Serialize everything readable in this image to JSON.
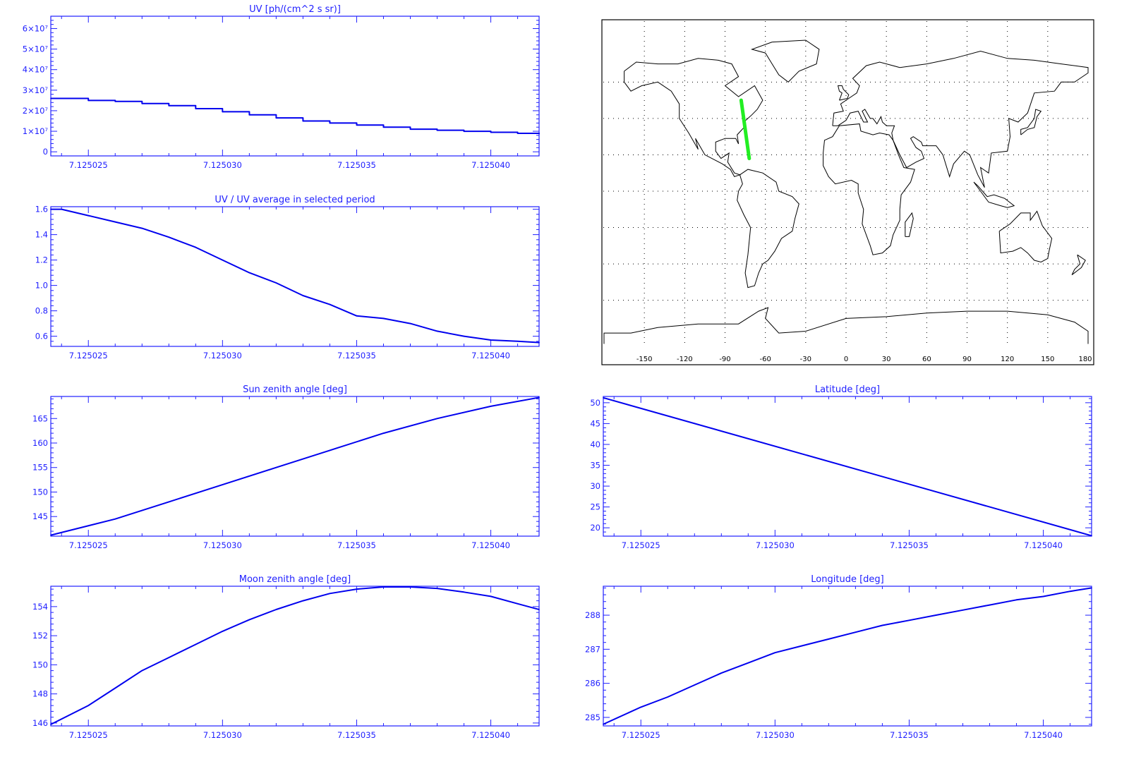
{
  "colors": {
    "axis": "#2020ff",
    "line": "#0000ee",
    "track": "#22ee22",
    "map": "#000000",
    "background": "#ffffff"
  },
  "map": {
    "x_ticks": [
      "-150",
      "-120",
      "-90",
      "-60",
      "-30",
      "0",
      "30",
      "60",
      "90",
      "120",
      "150",
      "180"
    ],
    "track": {
      "lon": [
        -72,
        -78
      ],
      "lat": [
        18,
        50
      ]
    }
  },
  "chart_data": [
    {
      "id": "uv",
      "type": "line",
      "title": "UV [ph/(cm^2 s sr)]",
      "xlim": [
        7.1250236,
        7.1250418
      ],
      "ylim": [
        -2000000,
        66000000
      ],
      "x_ticks": [
        "7.125025",
        "7.125030",
        "7.125035",
        "7.125040"
      ],
      "x_tick_values": [
        7.125025,
        7.12503,
        7.125035,
        7.12504
      ],
      "y_ticks": [
        "0",
        "1×10⁷",
        "2×10⁷",
        "3×10⁷",
        "4×10⁷",
        "5×10⁷",
        "6×10⁷"
      ],
      "y_tick_values": [
        0,
        10000000,
        20000000,
        30000000,
        40000000,
        50000000,
        60000000
      ],
      "step": true,
      "series": [
        {
          "x": [
            7.1250236,
            7.125025,
            7.125026,
            7.125027,
            7.125028,
            7.125029,
            7.12503,
            7.125031,
            7.125032,
            7.125033,
            7.125034,
            7.125035,
            7.125036,
            7.125037,
            7.125038,
            7.125039,
            7.12504,
            7.125041,
            7.1250418
          ],
          "y": [
            26000000,
            25000000,
            24500000,
            23500000,
            22500000,
            21000000,
            19500000,
            18000000,
            16500000,
            15000000,
            14000000,
            13000000,
            12000000,
            11000000,
            10500000,
            10000000,
            9500000,
            9000000,
            8800000
          ]
        }
      ]
    },
    {
      "id": "uv_ratio",
      "type": "line",
      "title": "UV / UV average in selected period",
      "xlim": [
        7.1250236,
        7.1250418
      ],
      "ylim": [
        0.52,
        1.62
      ],
      "x_ticks": [
        "7.125025",
        "7.125030",
        "7.125035",
        "7.125040"
      ],
      "x_tick_values": [
        7.125025,
        7.12503,
        7.125035,
        7.12504
      ],
      "y_ticks": [
        "0.6",
        "0.8",
        "1.0",
        "1.2",
        "1.4",
        "1.6"
      ],
      "y_tick_values": [
        0.6,
        0.8,
        1.0,
        1.2,
        1.4,
        1.6
      ],
      "series": [
        {
          "x": [
            7.1250236,
            7.125024,
            7.125025,
            7.125026,
            7.125027,
            7.125028,
            7.125029,
            7.12503,
            7.125031,
            7.125032,
            7.125033,
            7.125034,
            7.125035,
            7.125036,
            7.125037,
            7.125038,
            7.125039,
            7.12504,
            7.125041,
            7.1250418
          ],
          "y": [
            1.6,
            1.6,
            1.55,
            1.5,
            1.45,
            1.38,
            1.3,
            1.2,
            1.1,
            1.02,
            0.92,
            0.85,
            0.76,
            0.74,
            0.7,
            0.64,
            0.6,
            0.57,
            0.56,
            0.55
          ]
        }
      ]
    },
    {
      "id": "sun_zenith",
      "type": "line",
      "title": "Sun zenith angle [deg]",
      "xlim": [
        7.1250236,
        7.1250418
      ],
      "ylim": [
        141,
        169.5
      ],
      "x_ticks": [
        "7.125025",
        "7.125030",
        "7.125035",
        "7.125040"
      ],
      "x_tick_values": [
        7.125025,
        7.12503,
        7.125035,
        7.12504
      ],
      "y_ticks": [
        "145",
        "150",
        "155",
        "160",
        "165"
      ],
      "y_tick_values": [
        145,
        150,
        155,
        160,
        165
      ],
      "series": [
        {
          "x": [
            7.1250236,
            7.125026,
            7.125028,
            7.12503,
            7.125032,
            7.125034,
            7.125036,
            7.125038,
            7.12504,
            7.1250418
          ],
          "y": [
            141.2,
            144.5,
            148,
            151.5,
            155,
            158.5,
            162,
            165,
            167.5,
            169.3
          ]
        }
      ]
    },
    {
      "id": "latitude",
      "type": "line",
      "title": "Latitude [deg]",
      "xlim": [
        7.1250236,
        7.1250418
      ],
      "ylim": [
        18,
        51.5
      ],
      "x_ticks": [
        "7.125025",
        "7.125030",
        "7.125035",
        "7.125040"
      ],
      "x_tick_values": [
        7.125025,
        7.12503,
        7.125035,
        7.12504
      ],
      "y_ticks": [
        "20",
        "25",
        "30",
        "35",
        "40",
        "45",
        "50"
      ],
      "y_tick_values": [
        20,
        25,
        30,
        35,
        40,
        45,
        50
      ],
      "series": [
        {
          "x": [
            7.1250236,
            7.1250418
          ],
          "y": [
            51.2,
            18.1
          ]
        }
      ]
    },
    {
      "id": "moon_zenith",
      "type": "line",
      "title": "Moon zenith angle [deg]",
      "xlim": [
        7.1250236,
        7.1250418
      ],
      "ylim": [
        145.8,
        155.4
      ],
      "x_ticks": [
        "7.125025",
        "7.125030",
        "7.125035",
        "7.125040"
      ],
      "x_tick_values": [
        7.125025,
        7.12503,
        7.125035,
        7.12504
      ],
      "y_ticks": [
        "146",
        "148",
        "150",
        "152",
        "154"
      ],
      "y_tick_values": [
        146,
        148,
        150,
        152,
        154
      ],
      "series": [
        {
          "x": [
            7.1250236,
            7.125025,
            7.125026,
            7.125027,
            7.125028,
            7.125029,
            7.12503,
            7.125031,
            7.125032,
            7.125033,
            7.125034,
            7.125035,
            7.125036,
            7.125037,
            7.125038,
            7.125039,
            7.12504,
            7.125041,
            7.1250418
          ],
          "y": [
            145.9,
            147.2,
            148.4,
            149.6,
            150.5,
            151.4,
            152.3,
            153.1,
            153.8,
            154.4,
            154.9,
            155.2,
            155.35,
            155.35,
            155.25,
            155.0,
            154.7,
            154.2,
            153.8
          ]
        }
      ]
    },
    {
      "id": "longitude",
      "type": "line",
      "title": "Longitude [deg]",
      "xlim": [
        7.1250236,
        7.1250418
      ],
      "ylim": [
        284.75,
        288.85
      ],
      "x_ticks": [
        "7.125025",
        "7.125030",
        "7.125035",
        "7.125040"
      ],
      "x_tick_values": [
        7.125025,
        7.12503,
        7.125035,
        7.12504
      ],
      "y_ticks": [
        "285",
        "286",
        "287",
        "288"
      ],
      "y_tick_values": [
        285,
        286,
        287,
        288
      ],
      "series": [
        {
          "x": [
            7.1250236,
            7.125025,
            7.125026,
            7.125027,
            7.125028,
            7.125029,
            7.12503,
            7.125031,
            7.125032,
            7.125033,
            7.125034,
            7.125035,
            7.125036,
            7.125037,
            7.125038,
            7.125039,
            7.12504,
            7.125041,
            7.1250418
          ],
          "y": [
            284.8,
            285.3,
            285.6,
            285.95,
            286.3,
            286.6,
            286.9,
            287.1,
            287.3,
            287.5,
            287.7,
            287.85,
            288.0,
            288.15,
            288.3,
            288.45,
            288.55,
            288.7,
            288.8
          ]
        }
      ]
    }
  ]
}
